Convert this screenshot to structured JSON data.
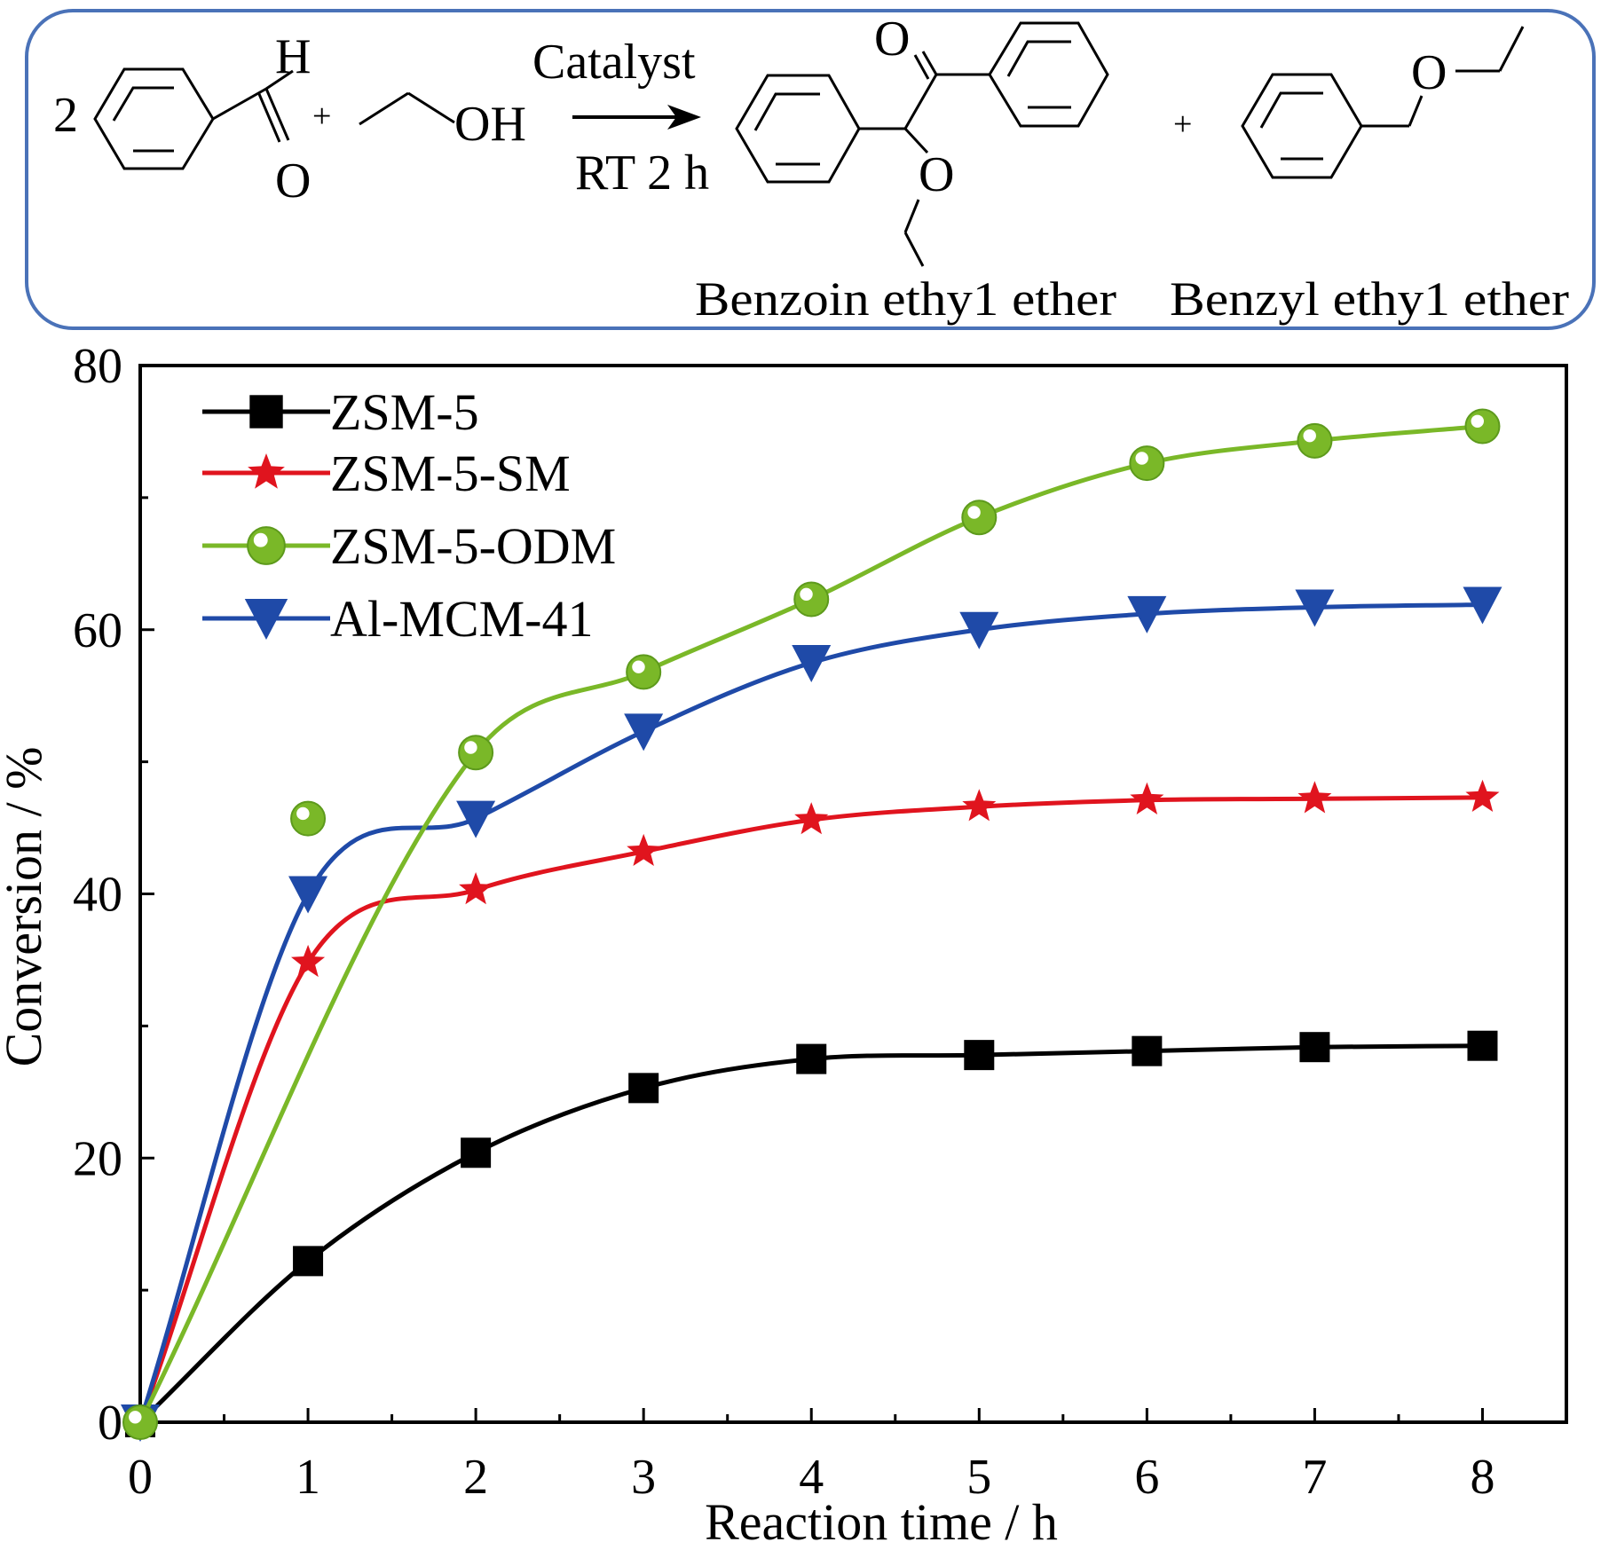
{
  "scheme": {
    "reagent_coefficient": "2",
    "aldehyde_h_label": "H",
    "aldehyde_o_label": "O",
    "plus_1": "+",
    "ethanol_label": "OH",
    "arrow_top_label": "Catalyst",
    "arrow_bottom_label": "RT 2 h",
    "product1_carbonyl_o": "O",
    "product1_ether_o": "O",
    "product1_name": "Benzoin ethy1 ether",
    "plus_2": "+",
    "product2_ether_o": "O",
    "product2_name": "Benzyl ethy1 ether",
    "box_color": "#4a72b8"
  },
  "chart_data": {
    "type": "line",
    "title": "",
    "xlabel": "Reaction time / h",
    "ylabel": "Conversion / %",
    "xlim": [
      0,
      8.5
    ],
    "ylim": [
      0,
      80
    ],
    "x_ticks": [
      0,
      1,
      2,
      3,
      4,
      5,
      6,
      7,
      8
    ],
    "y_ticks": [
      0,
      20,
      40,
      60,
      80
    ],
    "grid": false,
    "legend_position": "top-left",
    "x": [
      0,
      1,
      2,
      3,
      4,
      5,
      6,
      7,
      8
    ],
    "series": [
      {
        "name": "ZSM-5",
        "color": "#000000",
        "marker": "square",
        "values": [
          0,
          12.2,
          20.4,
          25.3,
          27.5,
          27.8,
          28.1,
          28.4,
          28.5
        ]
      },
      {
        "name": "ZSM-5-SM",
        "color": "#e0141e",
        "marker": "star",
        "values": [
          0,
          34.8,
          40.3,
          43.2,
          45.6,
          46.6,
          47.1,
          47.2,
          47.3
        ]
      },
      {
        "name": "ZSM-5-ODM",
        "color": "#7ab828",
        "marker": "circle",
        "values": [
          0,
          45.7,
          50.7,
          56.8,
          62.3,
          68.5,
          72.6,
          74.3,
          75.4
        ]
      },
      {
        "name": "Al-MCM-41",
        "color": "#1f4aa8",
        "marker": "triangle-down",
        "values": [
          0,
          40.0,
          45.7,
          52.3,
          57.5,
          60.0,
          61.2,
          61.7,
          61.9
        ]
      }
    ]
  }
}
